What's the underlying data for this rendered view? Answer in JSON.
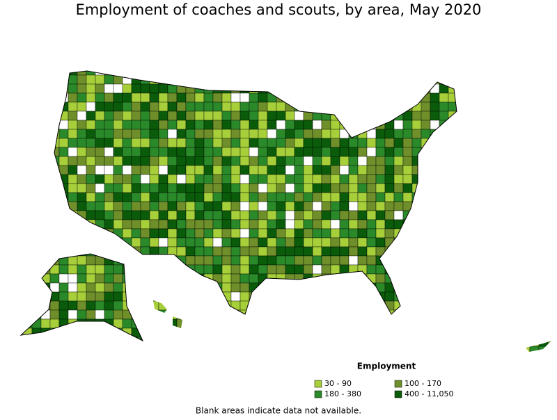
{
  "title": "Employment of coaches and scouts, by area, May 2020",
  "legend": {
    "title": "Employment",
    "items": [
      {
        "label": "30 - 90",
        "color": "#a6cf3a"
      },
      {
        "label": "100 - 170",
        "color": "#6f8f2a"
      },
      {
        "label": "180 - 380",
        "color": "#2a8a2a"
      },
      {
        "label": "400 - 11,050",
        "color": "#0a5c0a"
      }
    ]
  },
  "footnote": "Blank areas indicate data not available."
}
